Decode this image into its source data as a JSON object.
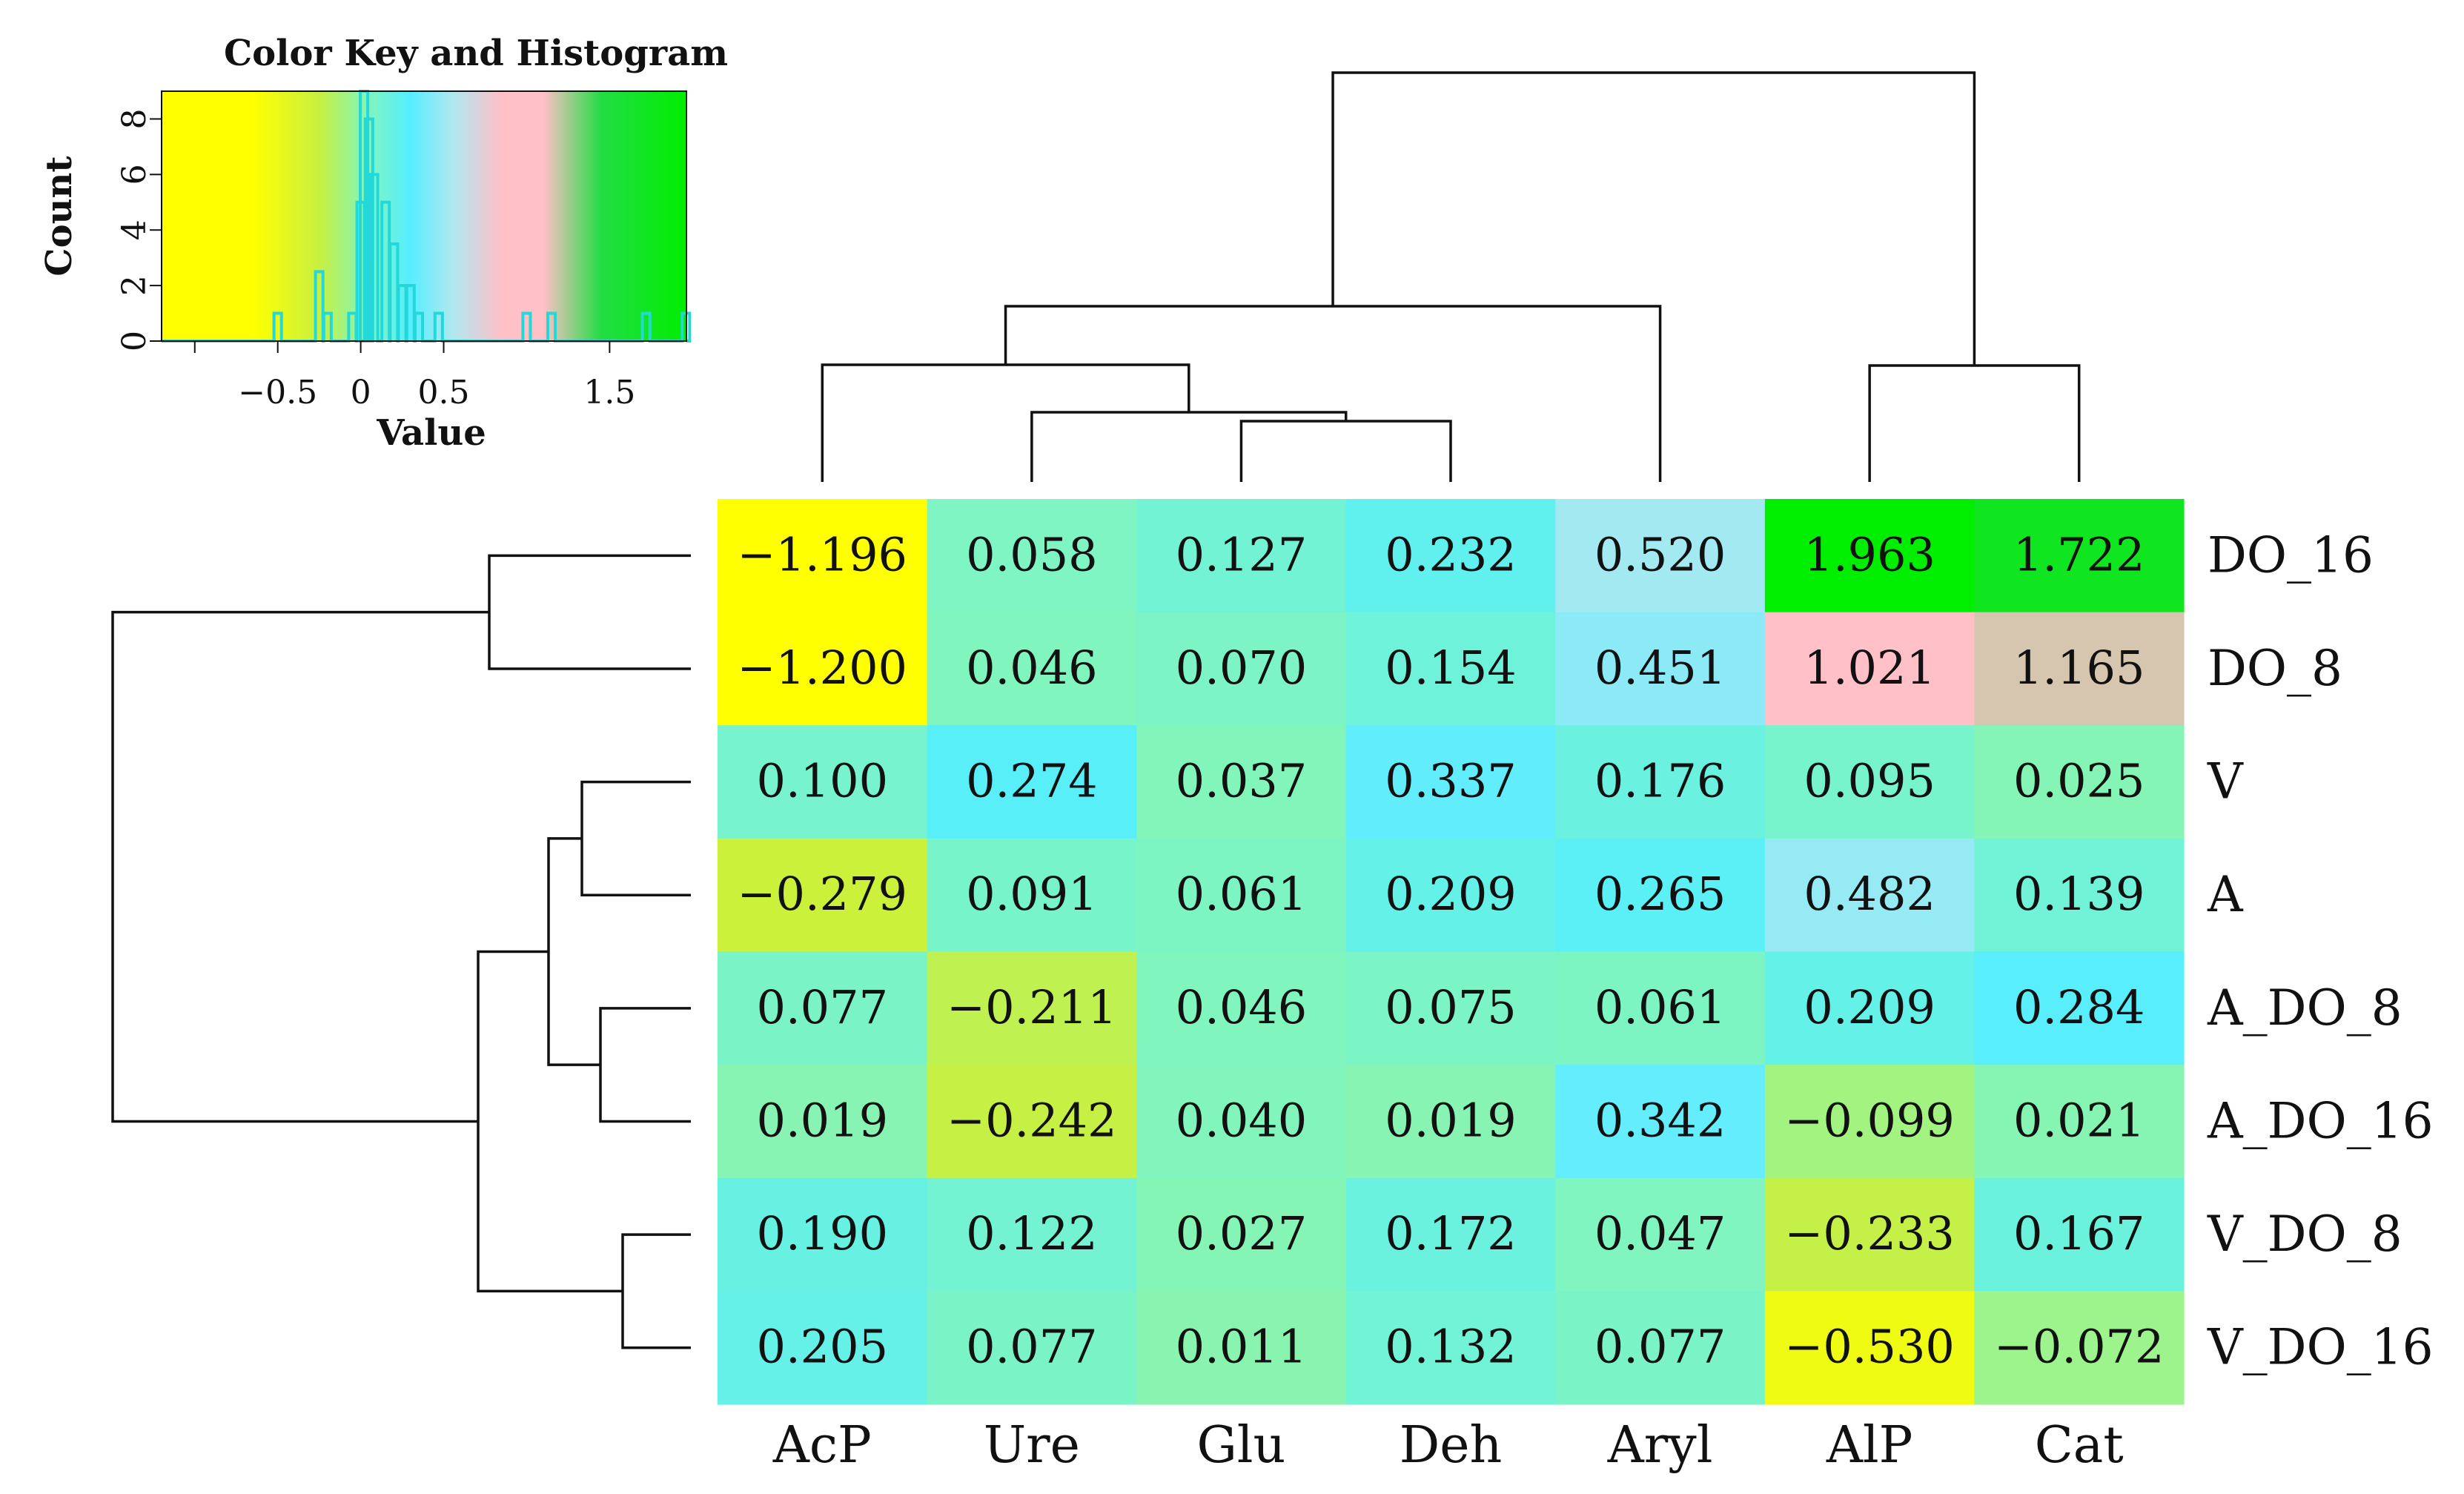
{
  "chart_data": {
    "type": "heatmap",
    "columns": [
      "AcP",
      "Ure",
      "Glu",
      "Deh",
      "Aryl",
      "AlP",
      "Cat"
    ],
    "rows": [
      "DO_16",
      "DO_8",
      "V",
      "A",
      "A_DO_8",
      "A_DO_16",
      "V_DO_8",
      "V_DO_16"
    ],
    "values": [
      [
        "−1.196",
        "0.058",
        "0.127",
        "0.232",
        "0.520",
        "1.963",
        "1.722"
      ],
      [
        "−1.200",
        "0.046",
        "0.070",
        "0.154",
        "0.451",
        "1.021",
        "1.165"
      ],
      [
        "0.100",
        "0.274",
        "0.037",
        "0.337",
        "0.176",
        "0.095",
        "0.025"
      ],
      [
        "−0.279",
        "0.091",
        "0.061",
        "0.209",
        "0.265",
        "0.482",
        "0.139"
      ],
      [
        "0.077",
        "−0.211",
        "0.046",
        "0.075",
        "0.061",
        "0.209",
        "0.284"
      ],
      [
        "0.019",
        "−0.242",
        "0.040",
        "0.019",
        "0.342",
        "−0.099",
        "0.021"
      ],
      [
        "0.190",
        "0.122",
        "0.027",
        "0.172",
        "0.047",
        "−0.233",
        "0.167"
      ],
      [
        "0.205",
        "0.077",
        "0.011",
        "0.132",
        "0.077",
        "−0.530",
        "−0.072"
      ]
    ],
    "color_key": {
      "title": "Color Key and Histogram",
      "xlabel": "Value",
      "ylabel": "Count",
      "x_range": [
        -1.2,
        1.963
      ],
      "x_ticks": [
        -0.5,
        0,
        0.5,
        1.5
      ],
      "x_tick_labels": [
        "−0.5",
        "0",
        "0.5",
        "1.5"
      ],
      "y_ticks": [
        0,
        2,
        4,
        6,
        8
      ],
      "y_tick_labels": [
        "0",
        "2",
        "4",
        "6",
        "8"
      ],
      "y_range": [
        0,
        9
      ],
      "gradient_colors": [
        {
          "value": -1.2,
          "color": "#ffff00"
        },
        {
          "value": -0.65,
          "color": "#ffff00"
        },
        {
          "value": -0.25,
          "color": "#c8f040"
        },
        {
          "value": 0.05,
          "color": "#7ff5c0"
        },
        {
          "value": 0.3,
          "color": "#55eeff"
        },
        {
          "value": 0.55,
          "color": "#aee8f0"
        },
        {
          "value": 0.85,
          "color": "#ffc0c8"
        },
        {
          "value": 1.1,
          "color": "#ffc0c8"
        },
        {
          "value": 1.45,
          "color": "#22dd44"
        },
        {
          "value": 1.963,
          "color": "#00ee00"
        }
      ],
      "histogram_line_color": "#22d8d8",
      "histogram_counts": [
        {
          "x": -0.5,
          "count": 1
        },
        {
          "x": -0.25,
          "count": 2.5
        },
        {
          "x": -0.2,
          "count": 1
        },
        {
          "x": -0.05,
          "count": 1
        },
        {
          "x": 0.0,
          "count": 5
        },
        {
          "x": 0.02,
          "count": 9
        },
        {
          "x": 0.05,
          "count": 8
        },
        {
          "x": 0.08,
          "count": 6
        },
        {
          "x": 0.15,
          "count": 5
        },
        {
          "x": 0.2,
          "count": 3.5
        },
        {
          "x": 0.25,
          "count": 2
        },
        {
          "x": 0.3,
          "count": 2
        },
        {
          "x": 0.35,
          "count": 1
        },
        {
          "x": 0.47,
          "count": 1
        },
        {
          "x": 1.0,
          "count": 1
        },
        {
          "x": 1.15,
          "count": 1
        },
        {
          "x": 1.72,
          "count": 1
        },
        {
          "x": 1.96,
          "count": 1
        }
      ]
    }
  }
}
